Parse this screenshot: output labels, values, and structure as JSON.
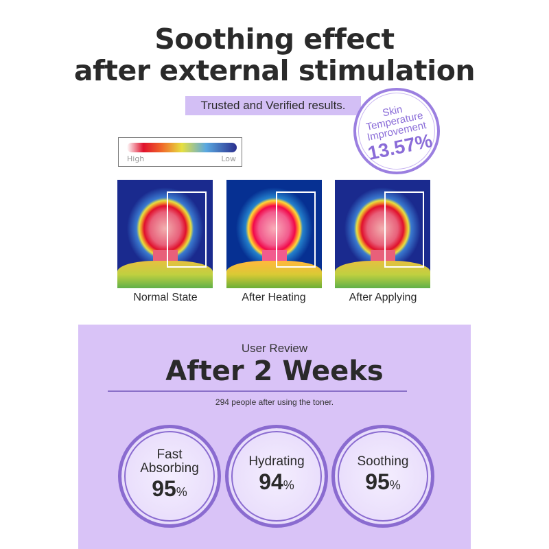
{
  "header": {
    "title_line1": "Soothing effect",
    "title_line2": "after external stimulation",
    "tagline": "Trusted and Verified results."
  },
  "badge": {
    "line1": "Skin",
    "line2": "Temperature",
    "line3": "Improvement",
    "value": "13.57%"
  },
  "legend": {
    "high": "High",
    "low": "Low"
  },
  "thermal_images": [
    {
      "caption": "Normal State"
    },
    {
      "caption": "After Heating"
    },
    {
      "caption": "After Applying"
    }
  ],
  "review": {
    "eyebrow": "User Review",
    "title": "After 2 Weeks",
    "subtitle": "294 people after using the toner.",
    "stats": [
      {
        "line1": "Fast",
        "line2": "Absorbing",
        "value": "95",
        "unit": "%"
      },
      {
        "line1": "",
        "line2": "Hydrating",
        "value": "94",
        "unit": "%"
      },
      {
        "line1": "",
        "line2": "Soothing",
        "value": "95",
        "unit": "%"
      }
    ]
  },
  "colors": {
    "accent": "#8a6bd0",
    "panel": "#d9c3f7",
    "tag": "#d3bff5"
  }
}
